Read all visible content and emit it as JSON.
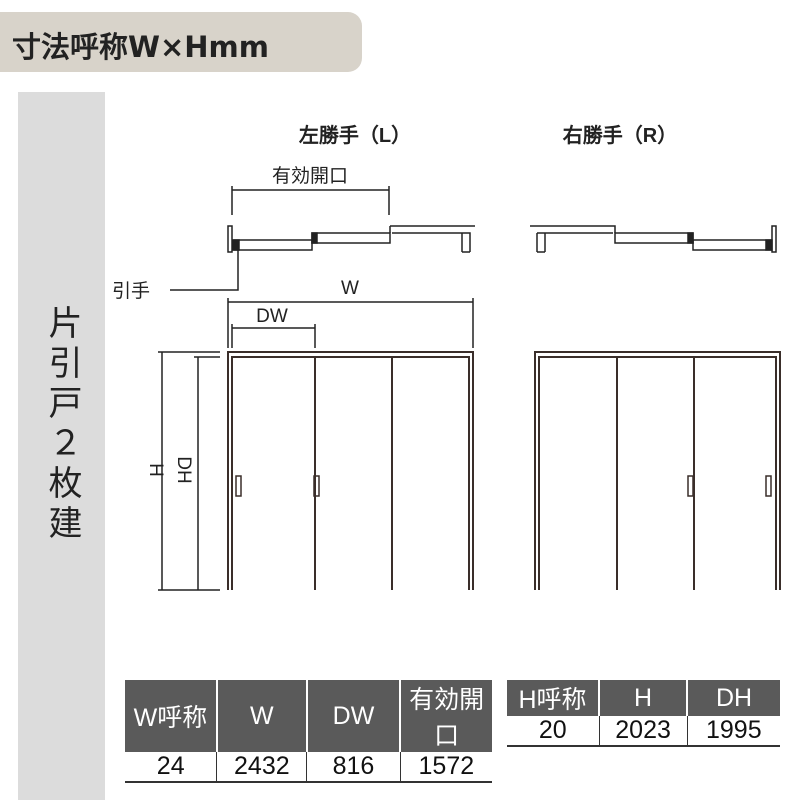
{
  "title": "寸法呼称W×Hmm",
  "category": "片引戸２枚建",
  "diagram": {
    "left_title": "左勝手（L）",
    "right_title": "右勝手（R）",
    "label_opening": "有効開口",
    "label_handle": "引手",
    "label_w": "W",
    "label_dw": "DW",
    "label_h": "H",
    "label_dh": "DH"
  },
  "table_w": {
    "headers": [
      "W呼称",
      "W",
      "DW",
      "有効開口"
    ],
    "values": [
      "24",
      "2432",
      "816",
      "1572"
    ]
  },
  "table_h": {
    "headers": [
      "H呼称",
      "H",
      "DH"
    ],
    "values": [
      "20",
      "2023",
      "1995"
    ]
  },
  "colors": {
    "header_bg": "#5a5a5a",
    "title_pill": "#d8d3ca",
    "sidebar": "#dcdcdc",
    "frame": "#3a2e2a"
  }
}
